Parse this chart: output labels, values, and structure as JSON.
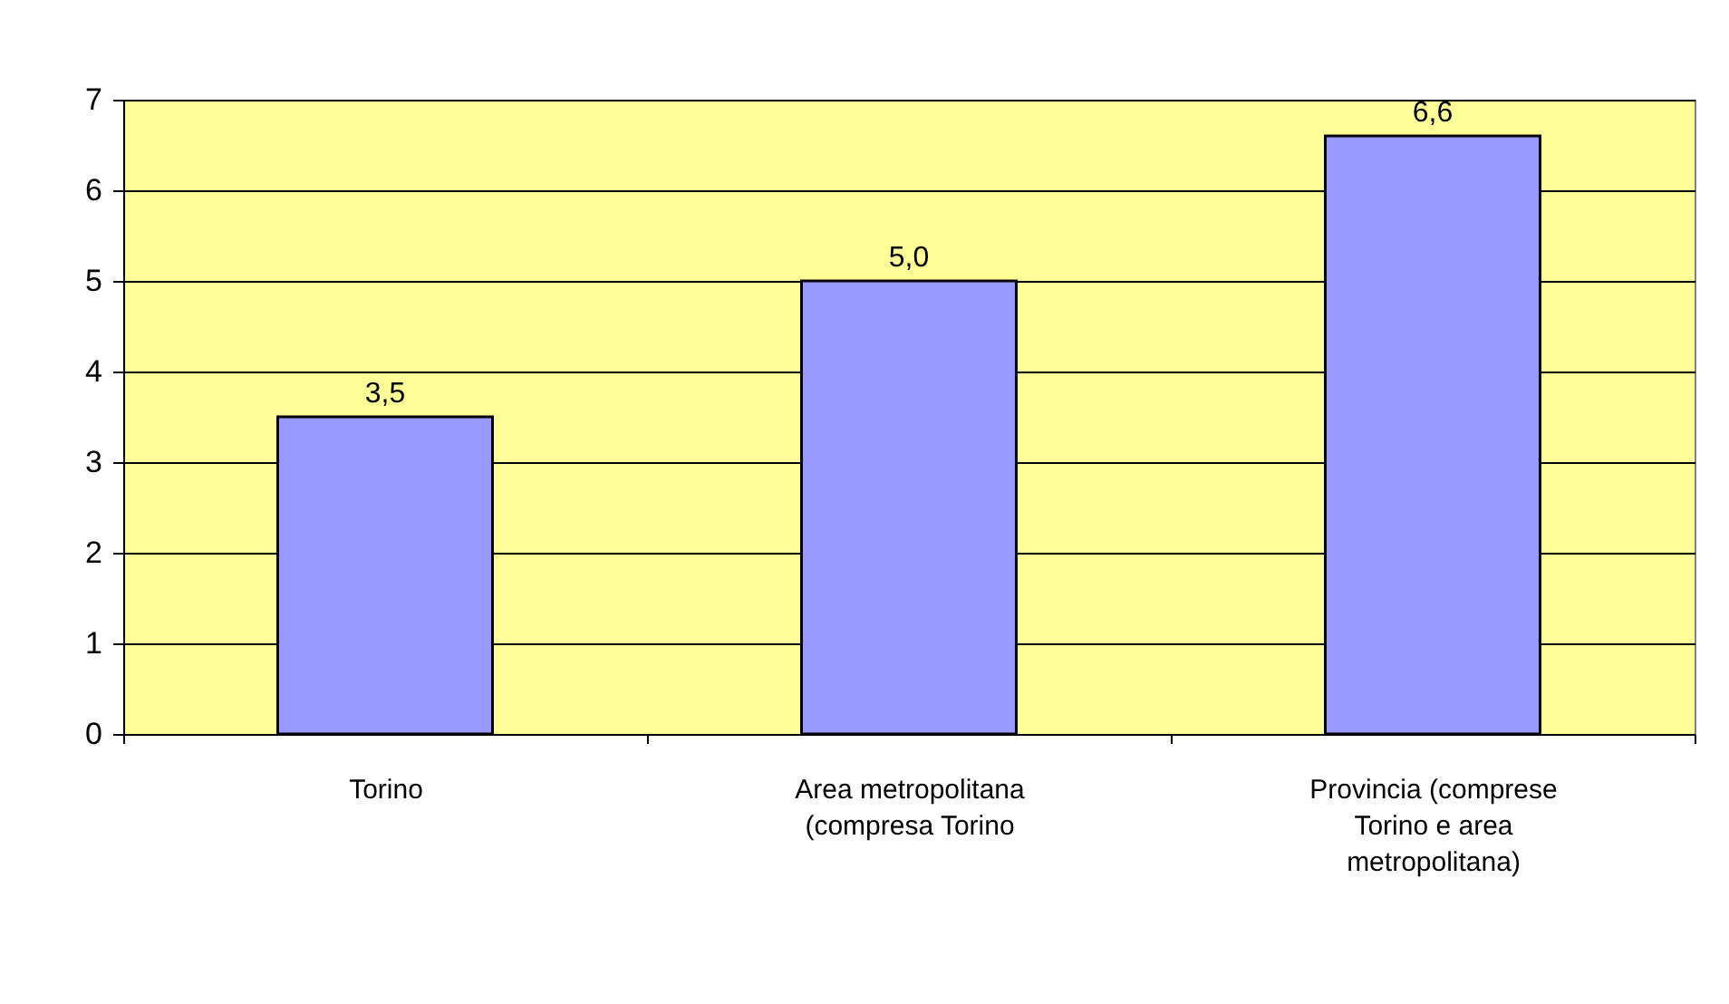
{
  "chart_data": {
    "type": "bar",
    "categories": [
      "Torino",
      "Area metropolitana (compresa Torino",
      "Provincia (comprese Torino e area metropolitana)"
    ],
    "values": [
      3.5,
      5.0,
      6.6
    ],
    "value_labels": [
      "3,5",
      "5,0",
      "6,6"
    ],
    "color": "#9999ff",
    "ylim": [
      0,
      7
    ],
    "yticks": [
      0,
      1,
      2,
      3,
      4,
      5,
      6,
      7
    ],
    "grid": "y"
  }
}
